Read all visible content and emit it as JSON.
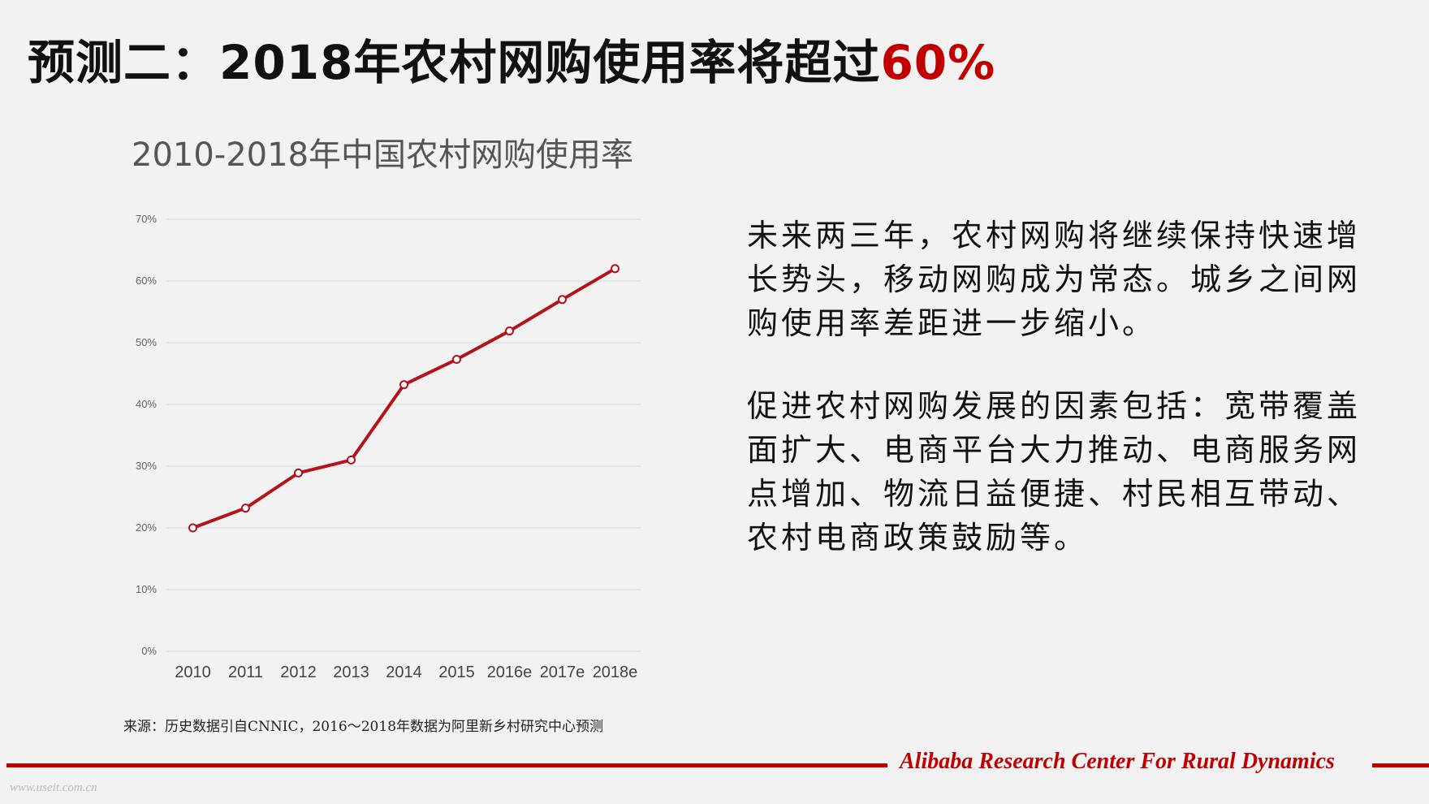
{
  "slide": {
    "title_main": "预测二：2018年农村网购使用率将超过",
    "title_accent": "60%",
    "chart_title": "2010-2018年中国农村网购使用率",
    "paragraph_1": "未来两三年，农村网购将继续保持快速增长势头，移动网购成为常态。城乡之间网购使用率差距进一步缩小。",
    "paragraph_2": "促进农村网购发展的因素包括：宽带覆盖面扩大、电商平台大力推动、电商服务网点增加、物流日益便捷、村民相互带动、农村电商政策鼓励等。",
    "source": "来源：历史数据引自CNNIC，2016～2018年数据为阿里新乡村研究中心预测",
    "brand": "Alibaba Research Center For Rural Dynamics",
    "watermark": "www.useit.com.cn"
  },
  "colors": {
    "accent": "#c00000",
    "line": "#b5121b",
    "grid": "#d9d9d9",
    "background": "#f2f2f2"
  },
  "chart_data": {
    "type": "line",
    "title": "2010-2018年中国农村网购使用率",
    "categories": [
      "2010",
      "2011",
      "2012",
      "2013",
      "2014",
      "2015",
      "2016e",
      "2017e",
      "2018e"
    ],
    "series": [
      {
        "values": [
          20,
          23.2,
          28.9,
          31,
          43.2,
          47.3,
          51.9,
          57,
          62
        ]
      }
    ],
    "ylim": [
      0,
      70
    ],
    "yticks": [
      "0%",
      "10%",
      "20%",
      "30%",
      "40%",
      "50%",
      "60%",
      "70%"
    ],
    "grid": true,
    "markers": "hollow-circle"
  }
}
